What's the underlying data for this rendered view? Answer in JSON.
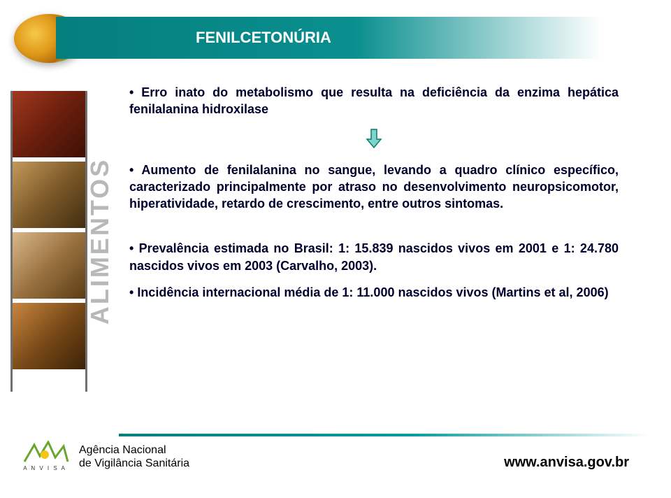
{
  "header": {
    "title": "FENILCETONÚRIA",
    "bar_gradient_from": "#057e7e",
    "bar_gradient_to": "#ffffff",
    "title_color": "#ffffff"
  },
  "sidebar": {
    "label": "ALIMENTOS",
    "label_color": "#b8b8b8"
  },
  "content": {
    "text_color": "#000030",
    "font_weight": "bold",
    "bullets": [
      "Erro inato do metabolismo que resulta na deficiência da enzima hepática fenilalanina hidroxilase",
      "Aumento de fenilalanina no sangue, levando a quadro clínico específico, caracterizado principalmente por atraso no desenvolvimento neuropsicomotor, hiperatividade, retardo de crescimento, entre outros sintomas.",
      "Prevalência estimada no Brasil: 1: 15.839 nascidos vivos em 2001 e 1: 24.780 nascidos vivos em 2003 (Carvalho, 2003).",
      "Incidência internacional média de 1: 11.000 nascidos vivos (Martins et al, 2006)"
    ],
    "arrow_color_fill": "#7fd4c8",
    "arrow_color_stroke": "#0a7a6e",
    "arrow_after_index": 0
  },
  "footer": {
    "agency_line1": "Agência Nacional",
    "agency_line2": "de Vigilância Sanitária",
    "logo_text": "A N V I S A",
    "logo_green": "#6aa52d",
    "logo_yellow": "#f5c518",
    "url": "www.anvisa.gov.br",
    "separator_color": "#057e7e"
  }
}
